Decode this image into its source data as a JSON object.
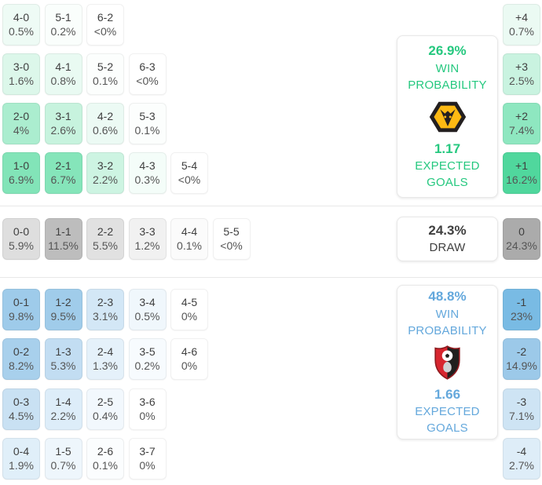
{
  "theme": {
    "home_accent": "#25c87f",
    "away_accent": "#64a8dc",
    "draw_text": "#3f3f3f",
    "cell_text": "#3f3f3f",
    "divider": "#e8e8e8",
    "wolves_gold": "#fdb913",
    "bournemouth_red": "#d7252e"
  },
  "icons": {
    "home_crest": "wolves-crest-icon",
    "away_crest": "bournemouth-crest-icon"
  },
  "panels": {
    "home": {
      "win_pct": "26.9%",
      "win_label_1": "WIN",
      "win_label_2": "PROBABILITY",
      "xg": "1.17",
      "xg_label_1": "EXPECTED",
      "xg_label_2": "GOALS"
    },
    "draw": {
      "pct": "24.3%",
      "label": "DRAW"
    },
    "away": {
      "win_pct": "48.8%",
      "win_label_1": "WIN",
      "win_label_2": "PROBABILITY",
      "xg": "1.66",
      "xg_label_1": "EXPECTED",
      "xg_label_2": "GOALS"
    }
  },
  "chart_data": {
    "type": "heatmap",
    "title": "Correct score probability matrix",
    "home_win_probability_pct": 26.9,
    "draw_probability_pct": 24.3,
    "away_win_probability_pct": 48.8,
    "home_expected_goals": 1.17,
    "away_expected_goals": 1.66,
    "score_rows": [
      {
        "outcome": "home",
        "cells": [
          {
            "score": "4-0",
            "pct": "0.5%",
            "bg": "#eefbf5"
          },
          {
            "score": "5-1",
            "pct": "0.2%",
            "bg": "#fafefc"
          },
          {
            "score": "6-2",
            "pct": "<0%",
            "bg": "#ffffff"
          }
        ]
      },
      {
        "outcome": "home",
        "cells": [
          {
            "score": "3-0",
            "pct": "1.6%",
            "bg": "#dcf7ea"
          },
          {
            "score": "4-1",
            "pct": "0.8%",
            "bg": "#e9faf2"
          },
          {
            "score": "5-2",
            "pct": "0.1%",
            "bg": "#fcfefd"
          },
          {
            "score": "6-3",
            "pct": "<0%",
            "bg": "#ffffff"
          }
        ]
      },
      {
        "outcome": "home",
        "cells": [
          {
            "score": "2-0",
            "pct": "4%",
            "bg": "#abedcf"
          },
          {
            "score": "3-1",
            "pct": "2.6%",
            "bg": "#c7f3de"
          },
          {
            "score": "4-2",
            "pct": "0.6%",
            "bg": "#ecfaf4"
          },
          {
            "score": "5-3",
            "pct": "0.1%",
            "bg": "#fcfefd"
          }
        ]
      },
      {
        "outcome": "home",
        "cells": [
          {
            "score": "1-0",
            "pct": "6.9%",
            "bg": "#82e4b8"
          },
          {
            "score": "2-1",
            "pct": "6.7%",
            "bg": "#85e5ba"
          },
          {
            "score": "3-2",
            "pct": "2.2%",
            "bg": "#cdf4e2"
          },
          {
            "score": "4-3",
            "pct": "0.3%",
            "bg": "#f4fdf9"
          },
          {
            "score": "5-4",
            "pct": "<0%",
            "bg": "#ffffff"
          }
        ]
      },
      {
        "outcome": "draw",
        "cells": [
          {
            "score": "0-0",
            "pct": "5.9%",
            "bg": "#dedede"
          },
          {
            "score": "1-1",
            "pct": "11.5%",
            "bg": "#bdbdbd"
          },
          {
            "score": "2-2",
            "pct": "5.5%",
            "bg": "#e1e1e1"
          },
          {
            "score": "3-3",
            "pct": "1.2%",
            "bg": "#f1f1f1"
          },
          {
            "score": "4-4",
            "pct": "0.1%",
            "bg": "#fbfbfb"
          },
          {
            "score": "5-5",
            "pct": "<0%",
            "bg": "#ffffff"
          }
        ]
      },
      {
        "outcome": "away",
        "cells": [
          {
            "score": "0-1",
            "pct": "9.8%",
            "bg": "#9ecbea"
          },
          {
            "score": "1-2",
            "pct": "9.5%",
            "bg": "#a0ccea"
          },
          {
            "score": "2-3",
            "pct": "3.1%",
            "bg": "#d3e7f6"
          },
          {
            "score": "3-4",
            "pct": "0.5%",
            "bg": "#f0f7fc"
          },
          {
            "score": "4-5",
            "pct": "0%",
            "bg": "#ffffff"
          }
        ]
      },
      {
        "outcome": "away",
        "cells": [
          {
            "score": "0-2",
            "pct": "8.2%",
            "bg": "#a8d0ec"
          },
          {
            "score": "1-3",
            "pct": "5.3%",
            "bg": "#c2ddf2"
          },
          {
            "score": "2-4",
            "pct": "1.3%",
            "bg": "#e5f1fa"
          },
          {
            "score": "3-5",
            "pct": "0.2%",
            "bg": "#f7fbfe"
          },
          {
            "score": "4-6",
            "pct": "0%",
            "bg": "#ffffff"
          }
        ]
      },
      {
        "outcome": "away",
        "cells": [
          {
            "score": "0-3",
            "pct": "4.5%",
            "bg": "#c9e1f3"
          },
          {
            "score": "1-4",
            "pct": "2.2%",
            "bg": "#ddedf9"
          },
          {
            "score": "2-5",
            "pct": "0.4%",
            "bg": "#f2f8fd"
          },
          {
            "score": "3-6",
            "pct": "0%",
            "bg": "#ffffff"
          }
        ]
      },
      {
        "outcome": "away",
        "cells": [
          {
            "score": "0-4",
            "pct": "1.9%",
            "bg": "#e0eff9"
          },
          {
            "score": "1-5",
            "pct": "0.7%",
            "bg": "#eef6fc"
          },
          {
            "score": "2-6",
            "pct": "0.1%",
            "bg": "#fbfdfe"
          },
          {
            "score": "3-7",
            "pct": "0%",
            "bg": "#ffffff"
          }
        ]
      }
    ],
    "goal_margins": [
      {
        "margin": "+4",
        "pct": "0.7%",
        "bg": "#ebfaf3"
      },
      {
        "margin": "+3",
        "pct": "2.5%",
        "bg": "#c9f3e0"
      },
      {
        "margin": "+2",
        "pct": "7.4%",
        "bg": "#8ee7c0"
      },
      {
        "margin": "+1",
        "pct": "16.2%",
        "bg": "#50d79d"
      },
      {
        "margin": "0",
        "pct": "24.3%",
        "bg": "#ababab"
      },
      {
        "margin": "-1",
        "pct": "23%",
        "bg": "#79bbe4"
      },
      {
        "margin": "-2",
        "pct": "14.9%",
        "bg": "#9cc9e9"
      },
      {
        "margin": "-3",
        "pct": "7.1%",
        "bg": "#cee4f4"
      },
      {
        "margin": "-4",
        "pct": "2.7%",
        "bg": "#deedf8"
      }
    ]
  }
}
